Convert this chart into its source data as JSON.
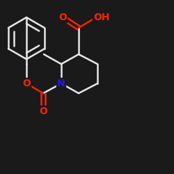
{
  "background_color": "#1a1a1a",
  "bond_color": "#e8e8e8",
  "atom_colors": {
    "O": "#ff2200",
    "N": "#1a1aff",
    "C": "#e8e8e8",
    "H": "#e8e8e8"
  },
  "figsize": [
    2.5,
    2.5
  ],
  "dpi": 100
}
